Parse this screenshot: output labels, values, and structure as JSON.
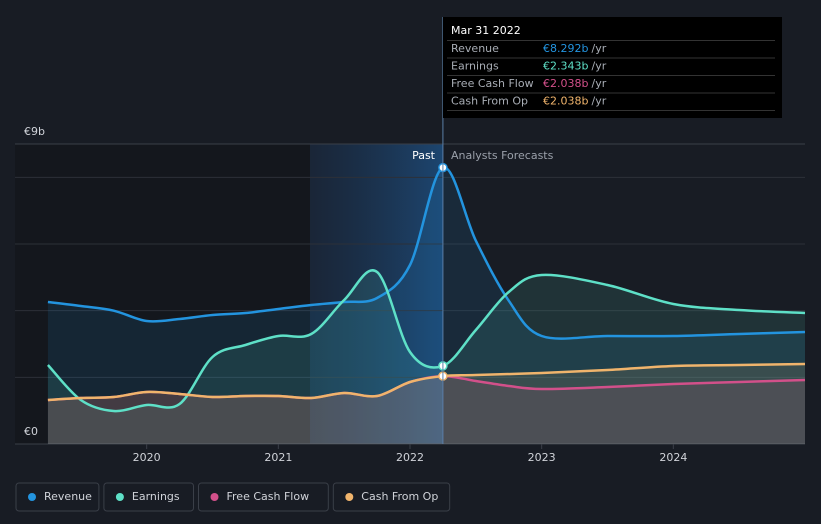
{
  "chart_data": {
    "type": "line",
    "xlim": [
      2019,
      2025
    ],
    "xticks": [
      2020,
      2021,
      2022,
      2023,
      2024
    ],
    "ylim": [
      0,
      9
    ],
    "yticks": [
      {
        "value": 0,
        "label": "€0"
      },
      {
        "value": 9,
        "label": "€9b"
      }
    ],
    "ygrid": [
      2,
      4,
      6,
      8
    ],
    "past_label": "Past",
    "forecast_label": "Analysts Forecasts",
    "series": [
      {
        "name": "Revenue",
        "color": "#2394df",
        "x": [
          2019.25,
          2019.5,
          2019.75,
          2020,
          2020.25,
          2020.5,
          2020.75,
          2021,
          2021.25,
          2021.5,
          2021.75,
          2022,
          2022.25,
          2022.5,
          2022.75,
          2023,
          2023.5,
          2024,
          2024.5,
          2025
        ],
        "values": [
          4.26,
          4.14,
          4.0,
          3.69,
          3.75,
          3.87,
          3.93,
          4.05,
          4.17,
          4.26,
          4.38,
          5.37,
          8.292,
          6.1,
          4.3,
          3.24,
          3.24,
          3.24,
          3.3,
          3.36
        ]
      },
      {
        "name": "Earnings",
        "color": "#5ee0c7",
        "x": [
          2019.25,
          2019.5,
          2019.75,
          2020,
          2020.25,
          2020.5,
          2020.75,
          2021,
          2021.25,
          2021.5,
          2021.75,
          2022,
          2022.25,
          2022.5,
          2022.75,
          2023,
          2023.5,
          2024,
          2024.5,
          2025
        ],
        "values": [
          2.37,
          1.32,
          0.99,
          1.17,
          1.2,
          2.61,
          2.97,
          3.24,
          3.3,
          4.32,
          5.16,
          2.76,
          2.343,
          3.42,
          4.56,
          5.07,
          4.77,
          4.2,
          4.02,
          3.93
        ]
      },
      {
        "name": "Free Cash Flow",
        "color": "#d2508a",
        "x": [
          2019.25,
          2019.5,
          2019.75,
          2020,
          2020.25,
          2020.5,
          2020.75,
          2021,
          2021.25,
          2021.5,
          2021.75,
          2022,
          2022.25,
          2022.5,
          2022.75,
          2023,
          2023.5,
          2024,
          2024.5,
          2025
        ],
        "values": [
          1.32,
          1.38,
          1.41,
          1.56,
          1.5,
          1.41,
          1.44,
          1.44,
          1.38,
          1.53,
          1.44,
          1.86,
          2.038,
          1.89,
          1.74,
          1.65,
          1.71,
          1.8,
          1.86,
          1.92
        ]
      },
      {
        "name": "Cash From Op",
        "color": "#f0b46c",
        "x": [
          2019.25,
          2019.5,
          2019.75,
          2020,
          2020.25,
          2020.5,
          2020.75,
          2021,
          2021.25,
          2021.5,
          2021.75,
          2022,
          2022.25,
          2022.5,
          2023,
          2023.5,
          2024,
          2024.5,
          2025
        ],
        "values": [
          1.32,
          1.38,
          1.41,
          1.56,
          1.5,
          1.41,
          1.44,
          1.44,
          1.38,
          1.53,
          1.44,
          1.86,
          2.038,
          2.07,
          2.13,
          2.22,
          2.34,
          2.37,
          2.4
        ]
      }
    ],
    "tooltip": {
      "x": 2022.25,
      "date": "Mar 31 2022",
      "rows": [
        {
          "label": "Revenue",
          "value": 8.292,
          "value_label": "€8.292b",
          "unit": "/yr"
        },
        {
          "label": "Earnings",
          "value": 2.343,
          "value_label": "€2.343b",
          "unit": "/yr"
        },
        {
          "label": "Free Cash Flow",
          "value": 2.038,
          "value_label": "€2.038b",
          "unit": "/yr"
        },
        {
          "label": "Cash From Op",
          "value": 2.038,
          "value_label": "€2.038b",
          "unit": "/yr"
        }
      ]
    }
  }
}
